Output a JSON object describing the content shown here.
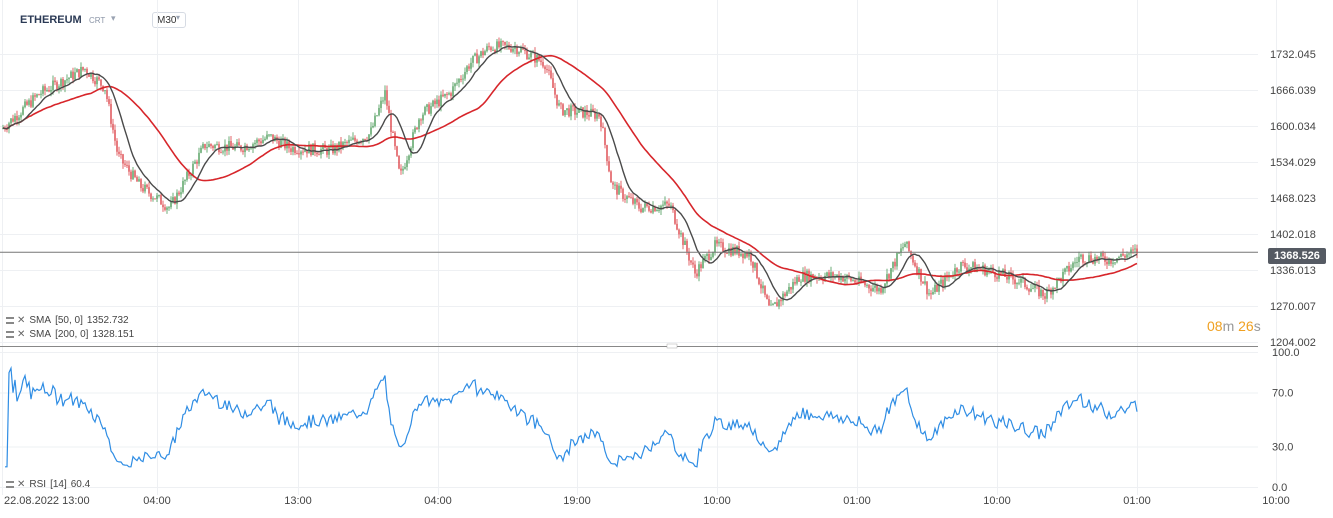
{
  "header": {
    "symbol": "ETHEREUM",
    "sub_label": "CRT",
    "timeframe": "M30"
  },
  "price_axis": {
    "ticks": [
      "1732.045",
      "1666.039",
      "1600.034",
      "1534.029",
      "1468.023",
      "1402.018",
      "1336.013",
      "1270.007",
      "1204.002"
    ]
  },
  "current_price": "1368.526",
  "indicators": [
    {
      "name": "SMA",
      "params": "[50,  0]",
      "value": "1352.732",
      "color": "#4a4a4a"
    },
    {
      "name": "SMA",
      "params": "[200,  0]",
      "value": "1328.151",
      "color": "#d7262b"
    }
  ],
  "countdown": {
    "minutes": "08",
    "m_unit": "m",
    "seconds": "26",
    "s_unit": "s"
  },
  "rsi": {
    "label": "RSI",
    "params": "[14]",
    "value": "60.4",
    "ticks": [
      "100.0",
      "70.0",
      "30.0",
      "0.0"
    ]
  },
  "time_axis": {
    "labels": [
      "22.08.2022  13:00",
      "04:00",
      "13:00",
      "04:00",
      "19:00",
      "10:00",
      "01:00",
      "10:00",
      "01:00",
      "10:00"
    ]
  },
  "colors": {
    "up": "#2e8b3e",
    "down": "#d7262b",
    "sma50": "#4a4a4a",
    "sma200": "#d7262b",
    "rsi": "#2f8de4",
    "price_line": "#777777"
  }
}
